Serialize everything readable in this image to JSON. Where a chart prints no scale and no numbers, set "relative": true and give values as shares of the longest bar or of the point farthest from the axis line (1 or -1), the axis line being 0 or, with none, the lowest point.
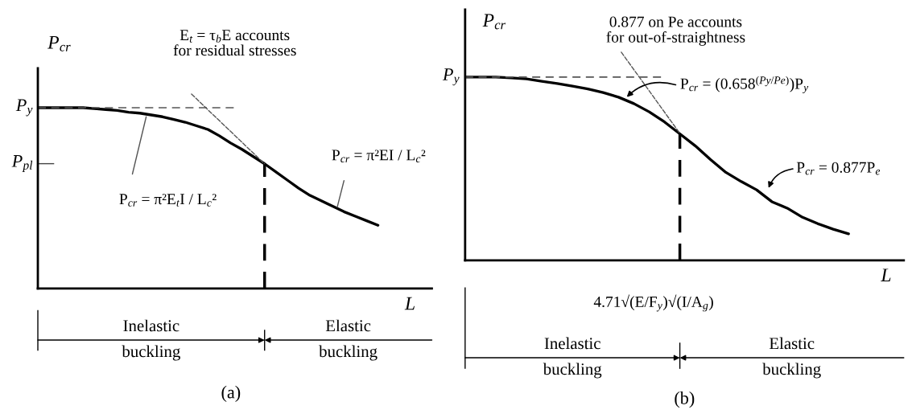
{
  "chart_data": [
    {
      "type": "line",
      "title": "(a)",
      "xlabel": "L",
      "ylabel": "P$_{cr}$",
      "relative": true,
      "legend": false,
      "grid": false,
      "categories": [
        null,
        null,
        null,
        null,
        null,
        null,
        null,
        null,
        null,
        null,
        null,
        null,
        null,
        null,
        null,
        null,
        null,
        null,
        null,
        null,
        null,
        null,
        null,
        null,
        null,
        null,
        null,
        null,
        null,
        null,
        null
      ],
      "series": [
        {
          "color": "#000000",
          "line_style": "solid",
          "values": [
            1.0,
            1.0,
            1.0,
            1.0,
            1.0,
            0.995,
            0.99,
            0.985,
            0.975,
            0.97,
            0.96,
            0.95,
            0.935,
            0.92,
            0.9,
            0.88,
            0.845,
            0.805,
            0.77,
            0.73,
            0.69,
            0.645,
            0.6,
            0.555,
            0.515,
            0.485,
            0.455,
            0.425,
            0.4,
            0.375,
            0.35
          ]
        }
      ],
      "ref_lines": [
        {
          "axis": "y",
          "value": 1,
          "label": "P$_{y}$",
          "line_style": "dashed",
          "color": "#555555"
        }
      ],
      "annotations": [
        "P$_{pl}$",
        "E$_{t}$ = τ$_{b}$E accounts\nfor residual stresses",
        "P$_{cr}$ = π²E$_{t}$I / L$_{c}$²",
        "P$_{cr}$ = π²EI / L$_{c}$²",
        "Inelastic\nbuckling",
        "Elastic\nbuckling"
      ]
    },
    {
      "type": "line",
      "title": "(b)",
      "xlabel": "L",
      "ylabel": "P$_{cr}$",
      "relative": true,
      "legend": false,
      "grid": false,
      "categories": [
        null,
        null,
        null,
        null,
        null,
        null,
        null,
        null,
        null,
        null,
        null,
        null,
        null,
        null,
        null,
        null,
        null,
        null,
        null,
        null,
        null,
        null,
        null,
        null,
        null,
        null
      ],
      "series": [
        {
          "color": "#000000",
          "line_style": "solid",
          "values": [
            1.0,
            1.0,
            1.0,
            0.995,
            0.99,
            0.977,
            0.965,
            0.95,
            0.935,
            0.915,
            0.89,
            0.855,
            0.81,
            0.755,
            0.69,
            0.625,
            0.55,
            0.48,
            0.43,
            0.385,
            0.32,
            0.285,
            0.235,
            0.2,
            0.17,
            0.145
          ]
        }
      ],
      "ref_lines": [
        {
          "axis": "y",
          "value": 1,
          "label": "P$_{y}$",
          "line_style": "dashed",
          "color": "#555555"
        }
      ],
      "annotations": [
        "0.877 on Pe accounts\nfor out-of-straightness",
        "P$_{cr}$ = (0.658$^{(Py/Pe)}$)P$_{y}$",
        "P$_{cr}$ = 0.877P$_{e}$",
        "4.71√(E/F$_{y}$)√(I/A$_{g}$)",
        "Inelastic\nbuckling",
        "Elastic\nbuckling"
      ]
    }
  ]
}
